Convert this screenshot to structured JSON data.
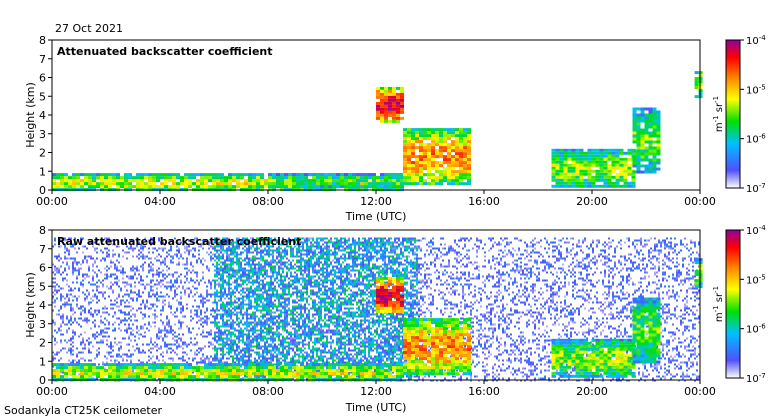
{
  "header": {
    "date": "27 Oct 2021"
  },
  "footer": {
    "instrument": "Sodankyla CT25K ceilometer"
  },
  "chart_data": [
    {
      "type": "heatmap",
      "title": "Attenuated backscatter coefficient",
      "xlabel": "Time (UTC)",
      "ylabel": "Height (km)",
      "xlim": [
        0,
        24
      ],
      "ylim": [
        0,
        8
      ],
      "xticks": [
        "00:00",
        "04:00",
        "08:00",
        "12:00",
        "16:00",
        "20:00",
        "00:00"
      ],
      "yticks": [
        "0",
        "1",
        "2",
        "3",
        "4",
        "5",
        "6",
        "7",
        "8"
      ],
      "colorbar": {
        "scale": "log",
        "range": [
          1e-07,
          0.0001
        ],
        "ticks": [
          "10-7",
          "10-6",
          "10-5",
          "10-4"
        ],
        "unit": "m-1 sr-1",
        "colors": [
          "#ffffff",
          "#5050ff",
          "#00c0ff",
          "#00e000",
          "#ffff00",
          "#ff8000",
          "#ff0000",
          "#9000a0"
        ]
      },
      "features": [
        {
          "name": "boundary layer",
          "t": [
            0,
            13
          ],
          "h": [
            0,
            0.9
          ],
          "level": 0.55
        },
        {
          "name": "aerosol layer",
          "t": [
            8,
            13
          ],
          "h": [
            0.2,
            0.9
          ],
          "level": 0.45
        },
        {
          "name": "elevated cloud",
          "t": [
            12,
            13
          ],
          "h": [
            3.6,
            5.5
          ],
          "level": 0.9
        },
        {
          "name": "descending cloud",
          "t": [
            13,
            15.5
          ],
          "h": [
            0.4,
            3.3
          ],
          "level": 0.7
        },
        {
          "name": "low cloud",
          "t": [
            18.5,
            21.5
          ],
          "h": [
            0.2,
            2.2
          ],
          "level": 0.5
        },
        {
          "name": "cloud streaks",
          "t": [
            21.5,
            22.5
          ],
          "h": [
            1,
            4.4
          ],
          "level": 0.45
        },
        {
          "name": "cloud top",
          "t": [
            23.8,
            24
          ],
          "h": [
            5,
            6.5
          ],
          "level": 0.5
        }
      ]
    },
    {
      "type": "heatmap",
      "title": "Raw attenuated backscatter coefficient",
      "xlabel": "Time (UTC)",
      "ylabel": "Height (km)",
      "xlim": [
        0,
        24
      ],
      "ylim": [
        0,
        8
      ],
      "xticks": [
        "00:00",
        "04:00",
        "08:00",
        "12:00",
        "16:00",
        "20:00",
        "00:00"
      ],
      "yticks": [
        "0",
        "1",
        "2",
        "3",
        "4",
        "5",
        "6",
        "7",
        "8"
      ],
      "colorbar": {
        "scale": "log",
        "range": [
          1e-07,
          0.0001
        ],
        "ticks": [
          "10-7",
          "10-6",
          "10-5",
          "10-4"
        ],
        "unit": "m-1 sr-1",
        "colors": [
          "#ffffff",
          "#5050ff",
          "#00c0ff",
          "#00e000",
          "#ffff00",
          "#ff8000",
          "#ff0000",
          "#9000a0"
        ]
      },
      "features": [
        {
          "name": "background noise",
          "t": [
            0,
            24
          ],
          "h": [
            0,
            7.6
          ],
          "level": 0.15
        },
        {
          "name": "daylight noise",
          "t": [
            6,
            13.5
          ],
          "h": [
            0,
            7.6
          ],
          "level": 0.3
        },
        {
          "name": "boundary layer",
          "t": [
            0,
            13
          ],
          "h": [
            0,
            0.9
          ],
          "level": 0.55
        },
        {
          "name": "elevated cloud",
          "t": [
            12,
            13
          ],
          "h": [
            3.6,
            5.5
          ],
          "level": 0.9
        },
        {
          "name": "descending cloud",
          "t": [
            13,
            15.5
          ],
          "h": [
            0.4,
            3.3
          ],
          "level": 0.7
        },
        {
          "name": "low cloud",
          "t": [
            18.5,
            21.5
          ],
          "h": [
            0.2,
            2.2
          ],
          "level": 0.5
        },
        {
          "name": "cloud streaks",
          "t": [
            21.5,
            22.5
          ],
          "h": [
            1,
            4.4
          ],
          "level": 0.45
        },
        {
          "name": "cloud top",
          "t": [
            23.8,
            24
          ],
          "h": [
            5,
            6.5
          ],
          "level": 0.5
        }
      ]
    }
  ]
}
